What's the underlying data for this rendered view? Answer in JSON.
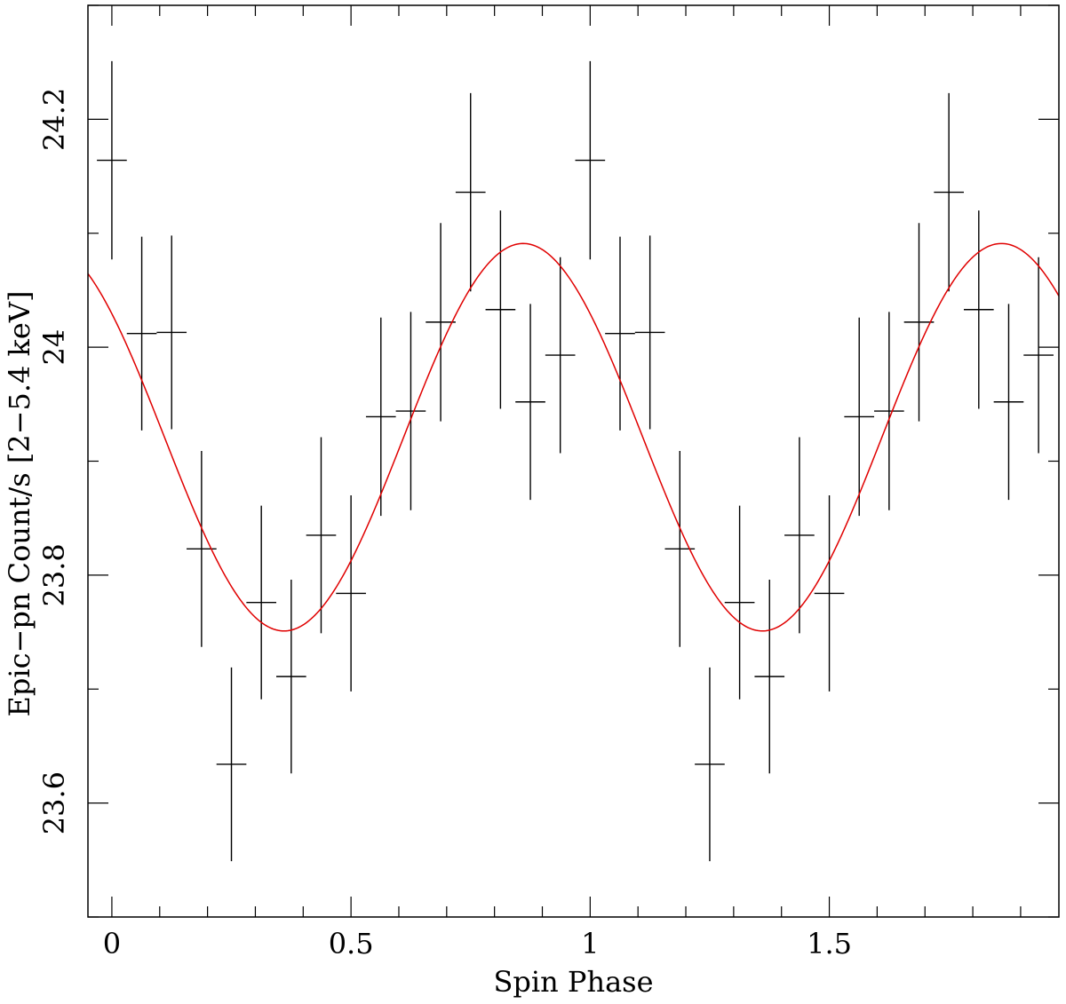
{
  "chart_data": {
    "type": "scatter",
    "xlabel": "Spin Phase",
    "ylabel": "Epic−pn Count/s [2−5.4 keV]",
    "xlim": [
      -0.05,
      1.98
    ],
    "ylim": [
      23.5,
      24.3
    ],
    "x_ticks": [
      {
        "value": 0,
        "label": "0"
      },
      {
        "value": 0.5,
        "label": "0.5"
      },
      {
        "value": 1,
        "label": "1"
      },
      {
        "value": 1.5,
        "label": "1.5"
      }
    ],
    "y_ticks": [
      {
        "value": 23.6,
        "label": "23.6"
      },
      {
        "value": 23.8,
        "label": "23.8"
      },
      {
        "value": 24,
        "label": "24"
      },
      {
        "value": 24.2,
        "label": "24.2"
      }
    ],
    "grid": false,
    "series": [
      {
        "kind": "errorbar",
        "color": "#000000",
        "x_halfwidth": 0.03125,
        "points": [
          {
            "x": 0.0,
            "y": 24.164,
            "err": 0.087
          },
          {
            "x": 0.0625,
            "y": 24.012,
            "err": 0.085
          },
          {
            "x": 0.125,
            "y": 24.013,
            "err": 0.085
          },
          {
            "x": 0.1875,
            "y": 23.823,
            "err": 0.086
          },
          {
            "x": 0.25,
            "y": 23.634,
            "err": 0.085
          },
          {
            "x": 0.3125,
            "y": 23.776,
            "err": 0.085
          },
          {
            "x": 0.375,
            "y": 23.711,
            "err": 0.085
          },
          {
            "x": 0.4375,
            "y": 23.835,
            "err": 0.086
          },
          {
            "x": 0.5,
            "y": 23.784,
            "err": 0.086
          },
          {
            "x": 0.5625,
            "y": 23.939,
            "err": 0.087
          },
          {
            "x": 0.625,
            "y": 23.944,
            "err": 0.087
          },
          {
            "x": 0.6875,
            "y": 24.022,
            "err": 0.087
          },
          {
            "x": 0.75,
            "y": 24.136,
            "err": 0.087
          },
          {
            "x": 0.8125,
            "y": 24.033,
            "err": 0.087
          },
          {
            "x": 0.875,
            "y": 23.952,
            "err": 0.086
          },
          {
            "x": 0.9375,
            "y": 23.993,
            "err": 0.086
          },
          {
            "x": 1.0,
            "y": 24.164,
            "err": 0.087
          },
          {
            "x": 1.0625,
            "y": 24.012,
            "err": 0.085
          },
          {
            "x": 1.125,
            "y": 24.013,
            "err": 0.085
          },
          {
            "x": 1.1875,
            "y": 23.823,
            "err": 0.086
          },
          {
            "x": 1.25,
            "y": 23.634,
            "err": 0.085
          },
          {
            "x": 1.3125,
            "y": 23.776,
            "err": 0.085
          },
          {
            "x": 1.375,
            "y": 23.711,
            "err": 0.085
          },
          {
            "x": 1.4375,
            "y": 23.835,
            "err": 0.086
          },
          {
            "x": 1.5,
            "y": 23.784,
            "err": 0.086
          },
          {
            "x": 1.5625,
            "y": 23.939,
            "err": 0.087
          },
          {
            "x": 1.625,
            "y": 23.944,
            "err": 0.087
          },
          {
            "x": 1.6875,
            "y": 24.022,
            "err": 0.087
          },
          {
            "x": 1.75,
            "y": 24.136,
            "err": 0.087
          },
          {
            "x": 1.8125,
            "y": 24.033,
            "err": 0.087
          },
          {
            "x": 1.875,
            "y": 23.952,
            "err": 0.086
          },
          {
            "x": 1.9375,
            "y": 23.993,
            "err": 0.086
          }
        ]
      },
      {
        "kind": "sine-fit",
        "color": "#e00000",
        "mean": 23.921,
        "amplitude": 0.17,
        "period": 1.0,
        "peak_phase": 0.86
      }
    ]
  }
}
